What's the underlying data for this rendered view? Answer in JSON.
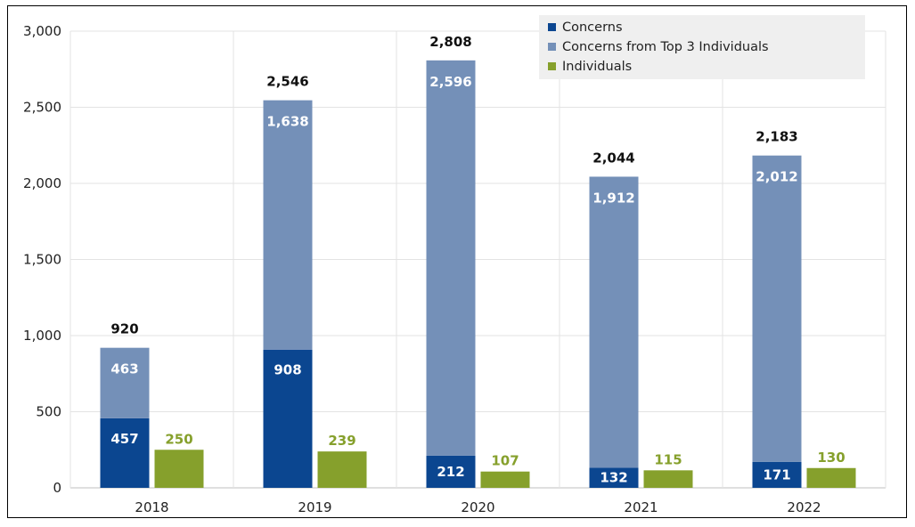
{
  "chart_data": {
    "type": "bar",
    "title": "",
    "xlabel": "",
    "ylabel": "",
    "categories": [
      "2018",
      "2019",
      "2020",
      "2021",
      "2022"
    ],
    "ylim": [
      0,
      3000
    ],
    "yticks": [
      0,
      500,
      1000,
      1500,
      2000,
      2500,
      3000
    ],
    "ytick_labels": [
      "0",
      "500",
      "1,000",
      "1,500",
      "2,000",
      "2,500",
      "3,000"
    ],
    "grid": true,
    "legend_position": "top-right",
    "series": [
      {
        "name": "Concerns",
        "stack": "concerns",
        "color": "#0b4690",
        "label_color": "#ffffff",
        "values": [
          457,
          908,
          212,
          132,
          171
        ],
        "labels": [
          "457",
          "908",
          "212",
          "132",
          "171"
        ]
      },
      {
        "name": "Concerns from Top 3 Individuals",
        "stack": "concerns",
        "color": "#7490b8",
        "label_color": "#ffffff",
        "values": [
          463,
          1638,
          2596,
          1912,
          2012
        ],
        "labels": [
          "463",
          "1,638",
          "2,596",
          "1,912",
          "2,012"
        ]
      },
      {
        "name": "Individuals",
        "stack": "individuals",
        "color": "#86a02c",
        "label_color": "#86a02c",
        "values": [
          250,
          239,
          107,
          115,
          130
        ],
        "labels": [
          "250",
          "239",
          "107",
          "115",
          "130"
        ]
      }
    ],
    "totals": {
      "values": [
        920,
        2546,
        2808,
        2044,
        2183
      ],
      "labels": [
        "920",
        "2,546",
        "2,808",
        "2,044",
        "2,183"
      ],
      "color": "#111111"
    }
  }
}
